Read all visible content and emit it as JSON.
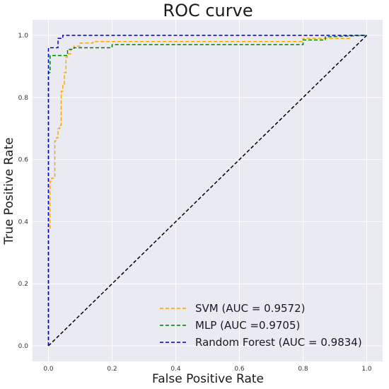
{
  "chart_data": {
    "type": "line",
    "title": "ROC curve",
    "xlabel": "False Positive Rate",
    "ylabel": "True Positive Rate",
    "xlim": [
      -0.05,
      1.05
    ],
    "ylim": [
      -0.05,
      1.05
    ],
    "xticks": [
      0.0,
      0.2,
      0.4,
      0.6,
      0.8,
      1.0
    ],
    "yticks": [
      0.0,
      0.2,
      0.4,
      0.6,
      0.8,
      1.0
    ],
    "xtick_labels": [
      "0.0",
      "0.2",
      "0.4",
      "0.6",
      "0.8",
      "1.0"
    ],
    "ytick_labels": [
      "0.0",
      "0.2",
      "0.4",
      "0.6",
      "0.8",
      "1.0"
    ],
    "grid": true,
    "legend_position": "bottom-right",
    "series": [
      {
        "name": "SVM (AUC = 0.9572)",
        "color": "#ffa500",
        "x": [
          0.0,
          0.0,
          0.005,
          0.005,
          0.01,
          0.01,
          0.02,
          0.02,
          0.025,
          0.025,
          0.03,
          0.03,
          0.035,
          0.035,
          0.04,
          0.04,
          0.045,
          0.045,
          0.05,
          0.05,
          0.055,
          0.055,
          0.06,
          0.06,
          0.07,
          0.07,
          0.08,
          0.08,
          0.1,
          0.1,
          0.14,
          0.14,
          0.8,
          0.8,
          0.95,
          0.95,
          1.0
        ],
        "y": [
          0.0,
          0.38,
          0.38,
          0.53,
          0.53,
          0.54,
          0.54,
          0.66,
          0.66,
          0.67,
          0.67,
          0.7,
          0.7,
          0.71,
          0.71,
          0.82,
          0.82,
          0.84,
          0.84,
          0.88,
          0.88,
          0.93,
          0.93,
          0.94,
          0.94,
          0.955,
          0.955,
          0.965,
          0.965,
          0.975,
          0.975,
          0.98,
          0.98,
          0.99,
          0.99,
          1.0,
          1.0
        ]
      },
      {
        "name": "MLP (AUC =0.9705)",
        "color": "#008000",
        "x": [
          0.0,
          0.0,
          0.005,
          0.005,
          0.06,
          0.06,
          0.08,
          0.08,
          0.2,
          0.2,
          0.8,
          0.8,
          0.87,
          0.87,
          1.0
        ],
        "y": [
          0.0,
          0.88,
          0.88,
          0.935,
          0.935,
          0.955,
          0.955,
          0.96,
          0.96,
          0.97,
          0.97,
          0.985,
          0.985,
          0.995,
          1.0
        ]
      },
      {
        "name": "Random Forest (AUC = 0.9834)",
        "color": "#0000cd",
        "x": [
          0.0,
          0.0,
          0.03,
          0.03,
          0.045,
          0.045,
          1.0
        ],
        "y": [
          0.0,
          0.96,
          0.96,
          0.99,
          0.99,
          1.0,
          1.0
        ]
      }
    ],
    "reference_line": {
      "color": "#000000",
      "x": [
        0.0,
        1.0
      ],
      "y": [
        0.0,
        1.0
      ]
    }
  }
}
